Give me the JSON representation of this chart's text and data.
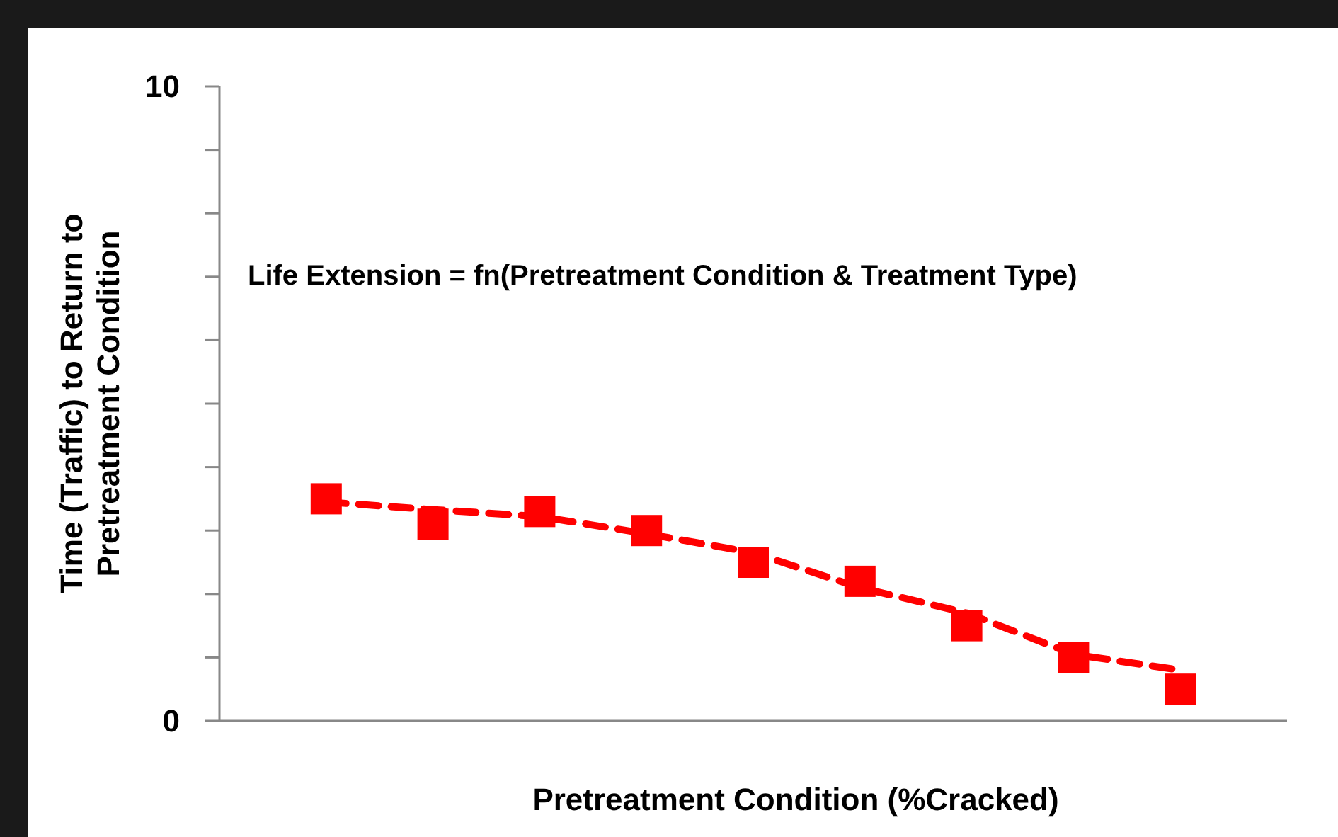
{
  "chart_data": {
    "type": "scatter",
    "xlabel": "Pretreatment Condition (%Cracked)",
    "ylabel": "Time (Traffic) to Return to Pretreatment Condition",
    "annotations": [
      "Life Extension = fn(Pretreatment Condition & Treatment Type)"
    ],
    "categories": [
      null,
      null,
      null,
      null,
      null,
      null,
      null,
      null,
      null
    ],
    "ylim": [
      0,
      10
    ],
    "yticks": [
      0,
      {
        "value": 1,
        "label": null
      },
      {
        "value": 2,
        "label": null
      },
      {
        "value": 3,
        "label": null
      },
      {
        "value": 4,
        "label": null
      },
      {
        "value": 5,
        "label": null
      },
      {
        "value": 6,
        "label": null
      },
      {
        "value": 7,
        "label": null
      },
      {
        "value": 8,
        "label": null
      },
      {
        "value": 9,
        "label": null
      },
      10
    ],
    "grid": false,
    "series": [
      {
        "color": "#ff0000",
        "marker": "square",
        "values": [
          3.5,
          3.1,
          3.3,
          3.0,
          2.5,
          2.2,
          1.5,
          1.0,
          0.5
        ]
      },
      {
        "type": "line",
        "color": "#ff0000",
        "line_style": "dashed",
        "values": [
          3.45,
          3.33,
          3.22,
          2.95,
          2.65,
          2.1,
          1.7,
          1.05,
          0.8
        ]
      }
    ]
  }
}
